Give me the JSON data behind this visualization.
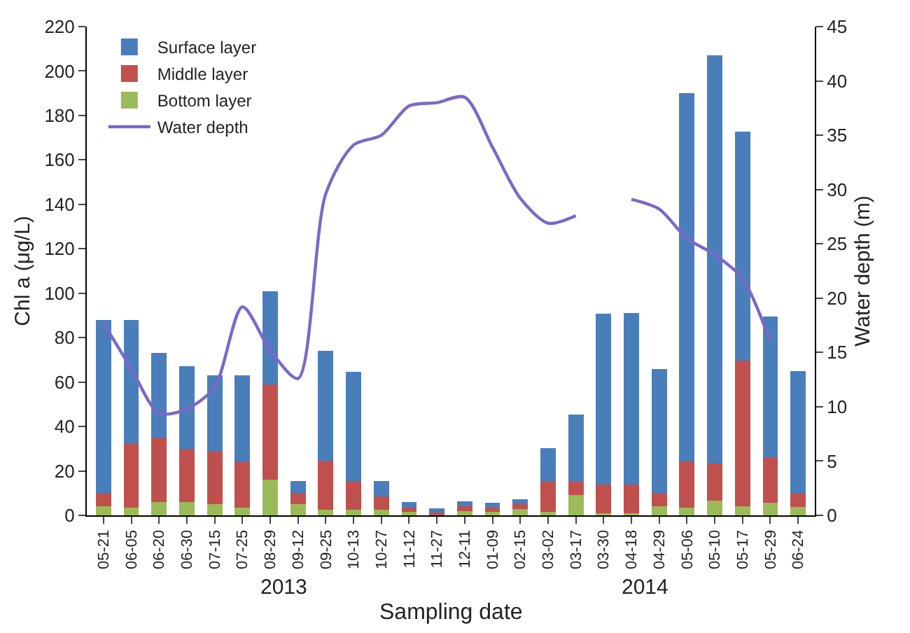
{
  "chart_data": {
    "type": "bar",
    "stacked": true,
    "xlabel": "Sampling date",
    "ylabel": "Chl a (μg/L)",
    "y2label": "Water depth (m)",
    "categories": [
      "05-21",
      "06-05",
      "06-20",
      "06-30",
      "07-15",
      "07-25",
      "08-29",
      "09-12",
      "09-25",
      "10-13",
      "10-27",
      "11-12",
      "11-27",
      "12-11",
      "01-09",
      "02-15",
      "03-02",
      "03-17",
      "03-30",
      "04-18",
      "04-29",
      "05-06",
      "05-10",
      "05-17",
      "05-29",
      "06-24"
    ],
    "series": [
      {
        "name": "Bottom layer",
        "color": "#9bbb59",
        "values": [
          4,
          3.5,
          6,
          6,
          5,
          3.5,
          16,
          5,
          2.5,
          2.5,
          2.5,
          1.5,
          null,
          2,
          1.7,
          2.7,
          1.7,
          9,
          1,
          1,
          4,
          3.6,
          6.7,
          4.2,
          5.8,
          3.8
        ]
      },
      {
        "name": "Middle layer",
        "color": "#c0504d",
        "values": [
          6,
          28.5,
          29,
          24,
          24,
          20.5,
          43,
          5,
          22,
          13,
          6,
          2,
          1.2,
          2.2,
          1.9,
          2.5,
          13.5,
          6,
          13,
          13,
          6,
          20.8,
          16.7,
          65.4,
          19.9,
          6.2
        ]
      },
      {
        "name": "Surface layer",
        "color": "#4a7ebb",
        "values": [
          78,
          56,
          38,
          37,
          34,
          39,
          42,
          5.5,
          49.5,
          49,
          7,
          2.5,
          1.9,
          2.1,
          2,
          2.1,
          15,
          30.5,
          76.7,
          77,
          56,
          165.6,
          183.6,
          103.2,
          63.9,
          54.8
        ]
      },
      {
        "name": "Water depth",
        "type": "line",
        "axis": "y2",
        "color": "#7b68c8",
        "values": [
          17.7,
          13.5,
          9.4,
          9.8,
          11.8,
          19.2,
          15.2,
          12.6,
          29.6,
          34.1,
          35,
          37.7,
          38,
          38.5,
          33.9,
          29.2,
          26.9,
          27.6,
          null,
          29.1,
          28.2,
          25.5,
          24,
          21.8,
          16,
          null
        ]
      }
    ],
    "ylim": [
      0,
      220
    ],
    "yticks": [
      0,
      20,
      40,
      60,
      80,
      100,
      120,
      140,
      160,
      180,
      200,
      220
    ],
    "y2lim": [
      0,
      45
    ],
    "y2ticks": [
      0,
      5,
      10,
      15,
      20,
      25,
      30,
      35,
      40,
      45
    ],
    "annotations": [
      "2013",
      "2014"
    ],
    "legend": "top left"
  }
}
